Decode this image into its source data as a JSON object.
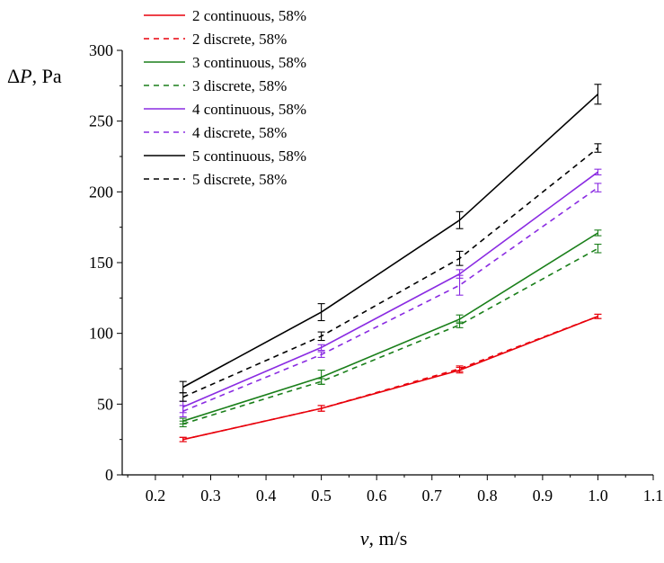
{
  "chart_data": {
    "type": "line",
    "title": "",
    "xlabel": {
      "var": "v",
      "unit": ", m/s"
    },
    "ylabel": {
      "prefix": "Δ",
      "var": "P",
      "unit": ", Pa"
    },
    "xlim": [
      0.14,
      1.1
    ],
    "ylim": [
      0,
      300
    ],
    "xticks": [
      "0.2",
      "0.3",
      "0.4",
      "0.5",
      "0.6",
      "0.7",
      "0.8",
      "0.9",
      "1.0",
      "1.1"
    ],
    "yticks": [
      "0",
      "50",
      "100",
      "150",
      "200",
      "250",
      "300"
    ],
    "grid": false,
    "legend_position": "top-left",
    "x": [
      0.25,
      0.5,
      0.75,
      1.0
    ],
    "series": [
      {
        "name": "2 continuous, 58%",
        "color": "#e8000b",
        "dash": false,
        "values": [
          25,
          47,
          74,
          112
        ],
        "errors": [
          1.5,
          2,
          2,
          1.5
        ]
      },
      {
        "name": "2 discrete, 58%",
        "color": "#e8000b",
        "dash": true,
        "values": [
          25,
          47,
          75,
          112
        ],
        "errors": [
          1.5,
          2,
          2,
          1.5
        ]
      },
      {
        "name": "3 continuous, 58%",
        "color": "#1a7f1a",
        "dash": false,
        "values": [
          38,
          69,
          110,
          171
        ],
        "errors": [
          2,
          5,
          3,
          2
        ]
      },
      {
        "name": "3 discrete, 58%",
        "color": "#1a7f1a",
        "dash": true,
        "values": [
          36,
          66,
          106,
          160
        ],
        "errors": [
          2,
          2,
          2,
          3
        ]
      },
      {
        "name": "4 continuous, 58%",
        "color": "#8a2be2",
        "dash": false,
        "values": [
          48,
          90,
          142,
          214
        ],
        "errors": [
          4,
          2,
          3,
          2
        ]
      },
      {
        "name": "4 discrete, 58%",
        "color": "#8a2be2",
        "dash": true,
        "values": [
          45,
          85,
          134,
          203
        ],
        "errors": [
          4,
          2,
          7,
          3
        ]
      },
      {
        "name": "5 continuous, 58%",
        "color": "#000000",
        "dash": false,
        "values": [
          62,
          115,
          180,
          269
        ],
        "errors": [
          4,
          6,
          6,
          7
        ]
      },
      {
        "name": "5 discrete, 58%",
        "color": "#000000",
        "dash": true,
        "values": [
          55,
          98,
          153,
          231
        ],
        "errors": [
          3,
          3,
          5,
          3
        ]
      }
    ]
  }
}
